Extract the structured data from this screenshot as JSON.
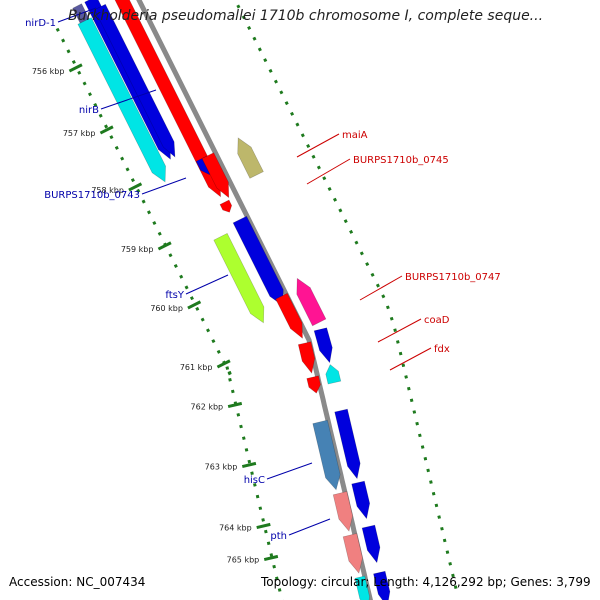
{
  "title": "Burkholderia pseudomallei 1710b chromosome I, complete seque...",
  "footer": {
    "accession": "Accession: NC_007434",
    "summary": "Topology: circular; Length: 4,126,292 bp; Genes: 3,799"
  },
  "colors": {
    "backbone": "#8a8a8a",
    "tick": "#1e7a1e",
    "label_reverse": "#0000aa",
    "label_forward": "#cc0000"
  },
  "ticks": [
    {
      "label": "756 kbp"
    },
    {
      "label": "757 kbp"
    },
    {
      "label": "758 kbp"
    },
    {
      "label": "759 kbp"
    },
    {
      "label": "760 kbp"
    },
    {
      "label": "761 kbp"
    },
    {
      "label": "762 kbp"
    },
    {
      "label": "763 kbp"
    },
    {
      "label": "764 kbp"
    },
    {
      "label": "765 kbp"
    }
  ],
  "genes": [
    {
      "id": "top-a",
      "color": "#5a5aa0"
    },
    {
      "id": "nirD-1",
      "label": "nirD-1",
      "color": "#0000dd"
    },
    {
      "id": "nirB",
      "label": "nirB",
      "color": "#00e5e5"
    },
    {
      "id": "nirB-b",
      "color": "#0000dd"
    },
    {
      "id": "maiA",
      "label": "maiA",
      "color": "#ff0000"
    },
    {
      "id": "small-blue",
      "color": "#0000dd"
    },
    {
      "id": "BURPS1710b_0745",
      "label": "BURPS1710b_0745",
      "color": "#bdb76b"
    },
    {
      "id": "red-0746",
      "color": "#ff0000"
    },
    {
      "id": "red-small",
      "color": "#ff0000"
    },
    {
      "id": "BURPS1710b_0743",
      "label": "BURPS1710b_0743",
      "color": "#0000dd"
    },
    {
      "id": "ftsY",
      "label": "ftsY",
      "color": "#adff2f"
    },
    {
      "id": "ftsY-b",
      "color": "#0000dd"
    },
    {
      "id": "BURPS1710b_0747",
      "label": "BURPS1710b_0747",
      "color": "#ff1493"
    },
    {
      "id": "red-0747",
      "color": "#ff0000"
    },
    {
      "id": "coaD",
      "label": "coaD",
      "color": "#ff0000"
    },
    {
      "id": "blue-coaD",
      "color": "#0000dd"
    },
    {
      "id": "fdx",
      "label": "fdx",
      "color": "#00e5e5"
    },
    {
      "id": "red-fdx",
      "color": "#ff0000"
    },
    {
      "id": "hisC",
      "label": "hisC",
      "color": "#4682b4"
    },
    {
      "id": "blue-hisC",
      "color": "#0000dd"
    },
    {
      "id": "pth",
      "label": "pth",
      "color": "#f08080"
    },
    {
      "id": "blue-pth",
      "color": "#0000dd"
    },
    {
      "id": "pink-bottom",
      "color": "#f08080"
    },
    {
      "id": "blue-bottom",
      "color": "#0000dd"
    },
    {
      "id": "bottom-cyan",
      "color": "#00e5e5"
    },
    {
      "id": "bottom-blue2",
      "color": "#0000dd"
    }
  ]
}
